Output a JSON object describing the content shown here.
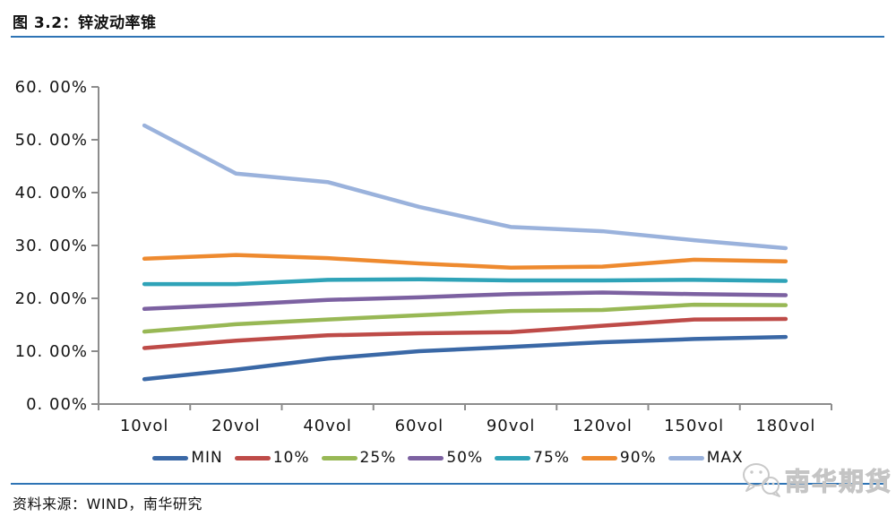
{
  "header": {
    "title": "图 3.2：锌波动率锥"
  },
  "footer": {
    "source": "资料来源：WIND，南华研究",
    "watermark_text": "南华期货"
  },
  "colors": {
    "divider_blue": "#2E74B5",
    "axis_gray": "#8C8C8C",
    "watermark_gray": "#C9C9C9"
  },
  "chart_data": {
    "type": "line",
    "title": "锌波动率锥",
    "categories": [
      "10vol",
      "20vol",
      "40vol",
      "60vol",
      "90vol",
      "120vol",
      "150vol",
      "180vol"
    ],
    "series": [
      {
        "name": "MIN",
        "color": "#3A68A6",
        "values": [
          4.7,
          6.5,
          8.6,
          10.0,
          10.8,
          11.7,
          12.3,
          12.7
        ]
      },
      {
        "name": "10%",
        "color": "#BE4B48",
        "values": [
          10.6,
          12.0,
          13.0,
          13.4,
          13.6,
          14.8,
          16.0,
          16.1
        ]
      },
      {
        "name": "25%",
        "color": "#98B855",
        "values": [
          13.7,
          15.1,
          16.0,
          16.8,
          17.6,
          17.8,
          18.8,
          18.7
        ]
      },
      {
        "name": "50%",
        "color": "#7C61A1",
        "values": [
          18.0,
          18.8,
          19.7,
          20.2,
          20.8,
          21.1,
          20.8,
          20.6
        ]
      },
      {
        "name": "75%",
        "color": "#2FA3B8",
        "values": [
          22.7,
          22.7,
          23.5,
          23.6,
          23.4,
          23.4,
          23.5,
          23.3
        ]
      },
      {
        "name": "90%",
        "color": "#EE8A2F",
        "values": [
          27.5,
          28.2,
          27.6,
          26.6,
          25.8,
          26.0,
          27.3,
          27.0
        ]
      },
      {
        "name": "MAX",
        "color": "#9AB2DC",
        "values": [
          52.7,
          43.6,
          42.0,
          37.3,
          33.5,
          32.7,
          31.0,
          29.5
        ]
      }
    ],
    "ylim": [
      0,
      60
    ],
    "ytick_step": 10,
    "ytick_labels": [
      "0. 00%",
      "10. 00%",
      "20. 00%",
      "30. 00%",
      "40. 00%",
      "50. 00%",
      "60. 00%"
    ],
    "xlabel": "",
    "ylabel": "",
    "grid": false,
    "legend_position": "bottom"
  }
}
